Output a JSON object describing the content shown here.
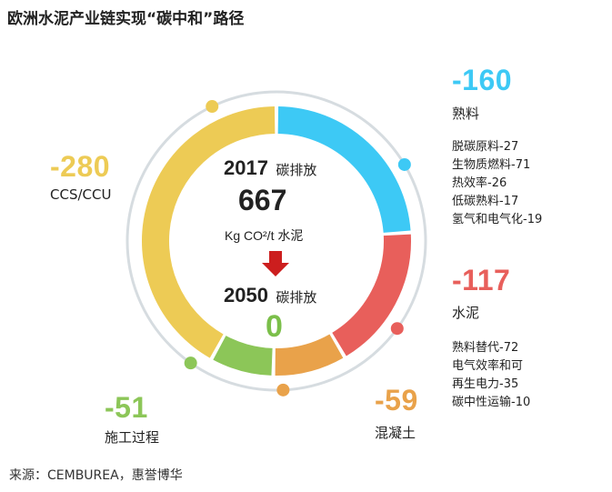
{
  "title": "欧洲水泥产业链实现“碳中和”路径",
  "source": "来源：CEMBUREA，惠誉博华",
  "center": {
    "year_2017": "2017",
    "emission_label_2017": "碳排放",
    "value_2017": "667",
    "unit": "Kg CO²/t 水泥",
    "year_2050": "2050",
    "emission_label_2050": "碳排放",
    "value_2050": "0"
  },
  "colors": {
    "clinker": "#3DC9F5",
    "cement": "#E85F5B",
    "concrete": "#E9A24A",
    "construction": "#8CC658",
    "ccs": "#EDCB55",
    "outer_ring": "#D6DCE0",
    "arrow": "#CC1E1E"
  },
  "chart_data": {
    "type": "pie",
    "title": "欧洲水泥产业链实现“碳中和”路径",
    "total": 667,
    "categories": [
      "熟料",
      "水泥",
      "混凝土",
      "施工过程",
      "CCS/CCU"
    ],
    "values": [
      160,
      117,
      59,
      51,
      280
    ],
    "labels": [
      "-160",
      "-117",
      "-59",
      "-51",
      "-280"
    ],
    "details": {
      "熟料": [
        "脱碳原料-27",
        "生物质燃料-71",
        "热效率-26",
        "低碳熟料-17",
        "氢气和电气化-19"
      ],
      "水泥": [
        "熟料替代-72",
        "电气效率和可",
        "再生电力-35",
        "碳中性运输-10"
      ]
    }
  }
}
